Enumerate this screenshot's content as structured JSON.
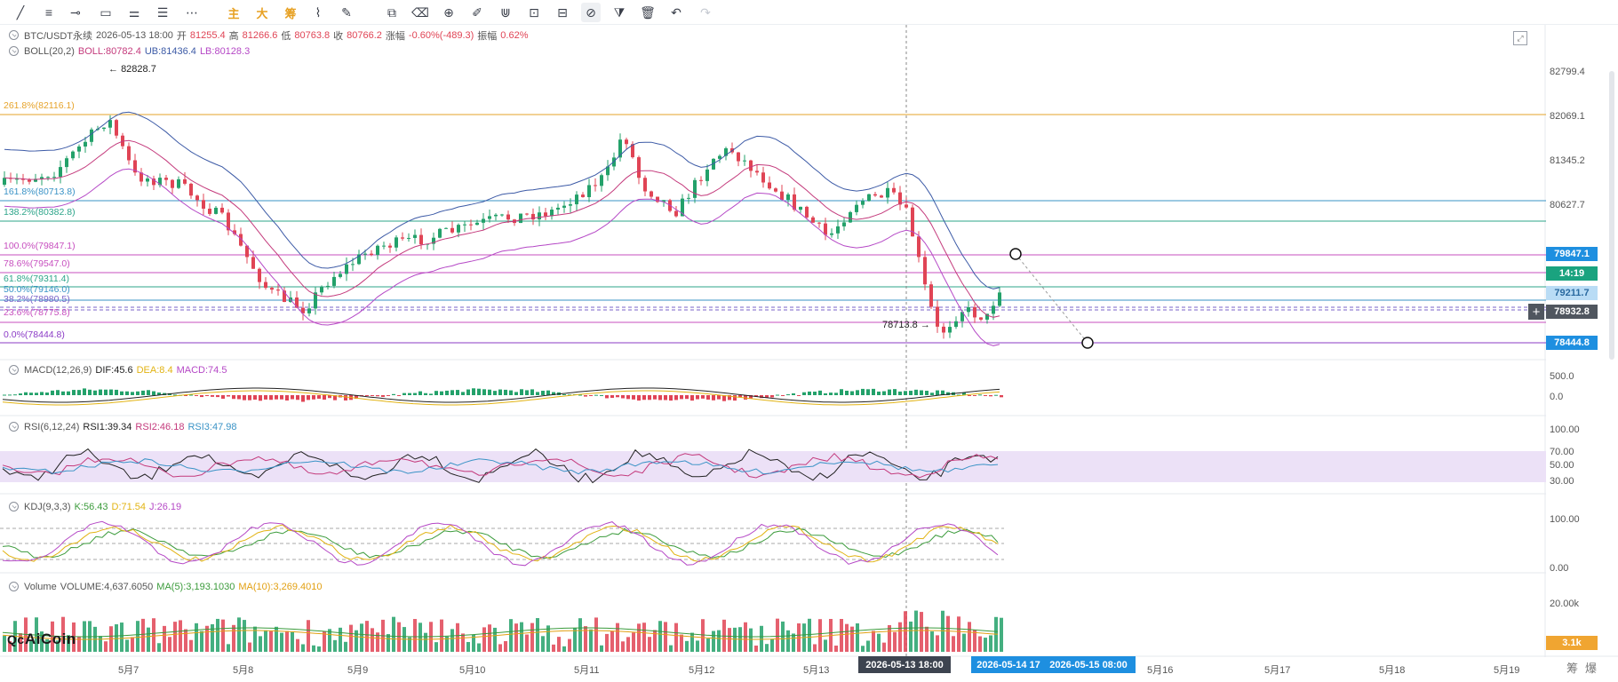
{
  "toolbar": {
    "tools": [
      {
        "name": "trend-line-tool-icon",
        "glyph": "╱"
      },
      {
        "name": "horizontal-lines-tool-icon",
        "glyph": "≡"
      },
      {
        "name": "ray-tool-icon",
        "glyph": "⊸"
      },
      {
        "name": "rectangle-tool-icon",
        "glyph": "▭"
      },
      {
        "name": "fib-levels-tool-icon",
        "glyph": "⚌"
      },
      {
        "name": "parallel-channel-tool-icon",
        "glyph": "☰"
      },
      {
        "name": "more-tools-icon",
        "glyph": "⋯"
      },
      {
        "name": "main-chart-button",
        "glyph": "主",
        "cn": true
      },
      {
        "name": "large-order-button",
        "glyph": "大",
        "cn": true
      },
      {
        "name": "chip-distribution-button",
        "glyph": "筹",
        "cn": true
      },
      {
        "name": "pattern-tool-icon",
        "glyph": "⌇"
      },
      {
        "name": "brush-tool-icon",
        "glyph": "✎"
      },
      {
        "name": "copy-icon",
        "glyph": "⧉"
      },
      {
        "name": "eraser-icon",
        "glyph": "⌫"
      },
      {
        "name": "zoom-in-icon",
        "glyph": "⊕"
      },
      {
        "name": "highlighter-icon",
        "glyph": "✐"
      },
      {
        "name": "magnet-icon",
        "glyph": "⋓"
      },
      {
        "name": "lock-icon",
        "glyph": "⊡"
      },
      {
        "name": "visibility-toggle-icon",
        "glyph": "⊟"
      },
      {
        "name": "link-drawing-icon",
        "glyph": "⊘",
        "active": true
      },
      {
        "name": "filter-icon",
        "glyph": "⧩"
      },
      {
        "name": "trash-icon",
        "glyph": "🗑"
      },
      {
        "name": "undo-icon",
        "glyph": "↶"
      },
      {
        "name": "redo-icon",
        "glyph": "↷",
        "disabled": true
      }
    ]
  },
  "symbol": {
    "pair": "BTC/USDT永续",
    "datetime": "2026-05-13 18:00",
    "open_label": "开",
    "open": "81255.4",
    "high_label": "高",
    "high": "81266.6",
    "low_label": "低",
    "low": "80763.8",
    "close_label": "收",
    "close": "80766.2",
    "change_label": "涨幅",
    "change": "-0.60%(-489.3)",
    "amp_label": "振幅",
    "amp": "0.62%"
  },
  "boll": {
    "name": "BOLL(20,2)",
    "boll": "BOLL:80782.4",
    "ub": "UB:81436.4",
    "lb": "LB:80128.3"
  },
  "macd": {
    "name": "MACD(12,26,9)",
    "dif": "DIF:45.6",
    "dea": "DEA:8.4",
    "macd": "MACD:74.5"
  },
  "rsi": {
    "name": "RSI(6,12,24)",
    "rsi1": "RSI1:39.34",
    "rsi2": "RSI2:46.18",
    "rsi3": "RSI3:47.98"
  },
  "kdj": {
    "name": "KDJ(9,3,3)",
    "k": "K:56.43",
    "d": "D:71.54",
    "j": "J:26.19"
  },
  "volume": {
    "name": "Volume",
    "vol": "VOLUME:4,637.6050",
    "ma5": "MA(5):3,193.1030",
    "ma10": "MA(10):3,269.4010"
  },
  "annotations": {
    "high_marker": "82828.7",
    "low_marker": "78713.8"
  },
  "fib_levels": [
    {
      "label": "261.8%(82116.1)",
      "color": "#e6a32a"
    },
    {
      "label": "161.8%(80713.8)",
      "color": "#3a93c6"
    },
    {
      "label": "138.2%(80382.8)",
      "color": "#2ea58a"
    },
    {
      "label": "100.0%(79847.1)",
      "color": "#c74fbf"
    },
    {
      "label": "78.6%(79547.0)",
      "color": "#c74fbf"
    },
    {
      "label": "61.8%(79311.4)",
      "color": "#2ea58a"
    },
    {
      "label": "50.0%(79146.0)",
      "color": "#3a93c6"
    },
    {
      "label": "38.2%(78980.5)",
      "color": "#7a63c8"
    },
    {
      "label": "23.6%(78775.8)",
      "color": "#c74fbf"
    },
    {
      "label": "0.0%(78444.8)",
      "color": "#8b3bc6"
    }
  ],
  "price_axis": [
    "82799.4",
    "82069.1",
    "81345.2",
    "80627.7"
  ],
  "price_tags": [
    {
      "label": "79847.1",
      "color": "#1e8fe0"
    },
    {
      "label": "14:19",
      "color": "#1aa37f"
    },
    {
      "label": "79211.7",
      "color": "#b9dcf5"
    },
    {
      "label": "78932.8",
      "color": "#50565f"
    },
    {
      "label": "78444.8",
      "color": "#1e8fe0"
    }
  ],
  "macd_axis": [
    "500.0",
    "0.0"
  ],
  "rsi_axis": [
    "100.00",
    "70.00",
    "50.00",
    "30.00"
  ],
  "kdj_axis": [
    "100.00",
    "0.00"
  ],
  "vol_axis": [
    "20.00k"
  ],
  "vol_tag": "3.1k",
  "time_axis": [
    "5月7",
    "5月8",
    "5月9",
    "5月10",
    "5月11",
    "5月12",
    "5月13",
    "5月16",
    "5月17",
    "5月18",
    "5月19"
  ],
  "time_tags": [
    "2026-05-13 18:00",
    "2026-05-14 17",
    "2026-05-15 08:00"
  ],
  "brand": "AiCoin",
  "corner_labels": [
    "筹",
    "爆"
  ],
  "colors": {
    "up": "#23a16a",
    "down": "#e04455",
    "accent": "#1e8fe0"
  }
}
